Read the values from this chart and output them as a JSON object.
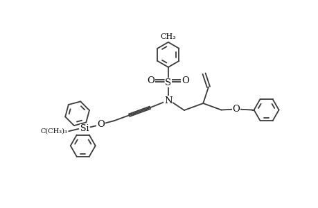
{
  "bg_color": "#ffffff",
  "line_color": "#3a3a3a",
  "line_width": 1.3,
  "fig_width": 4.6,
  "fig_height": 3.0,
  "dpi": 100,
  "xlim": [
    -1.0,
    9.5
  ],
  "ylim": [
    -0.5,
    6.5
  ]
}
